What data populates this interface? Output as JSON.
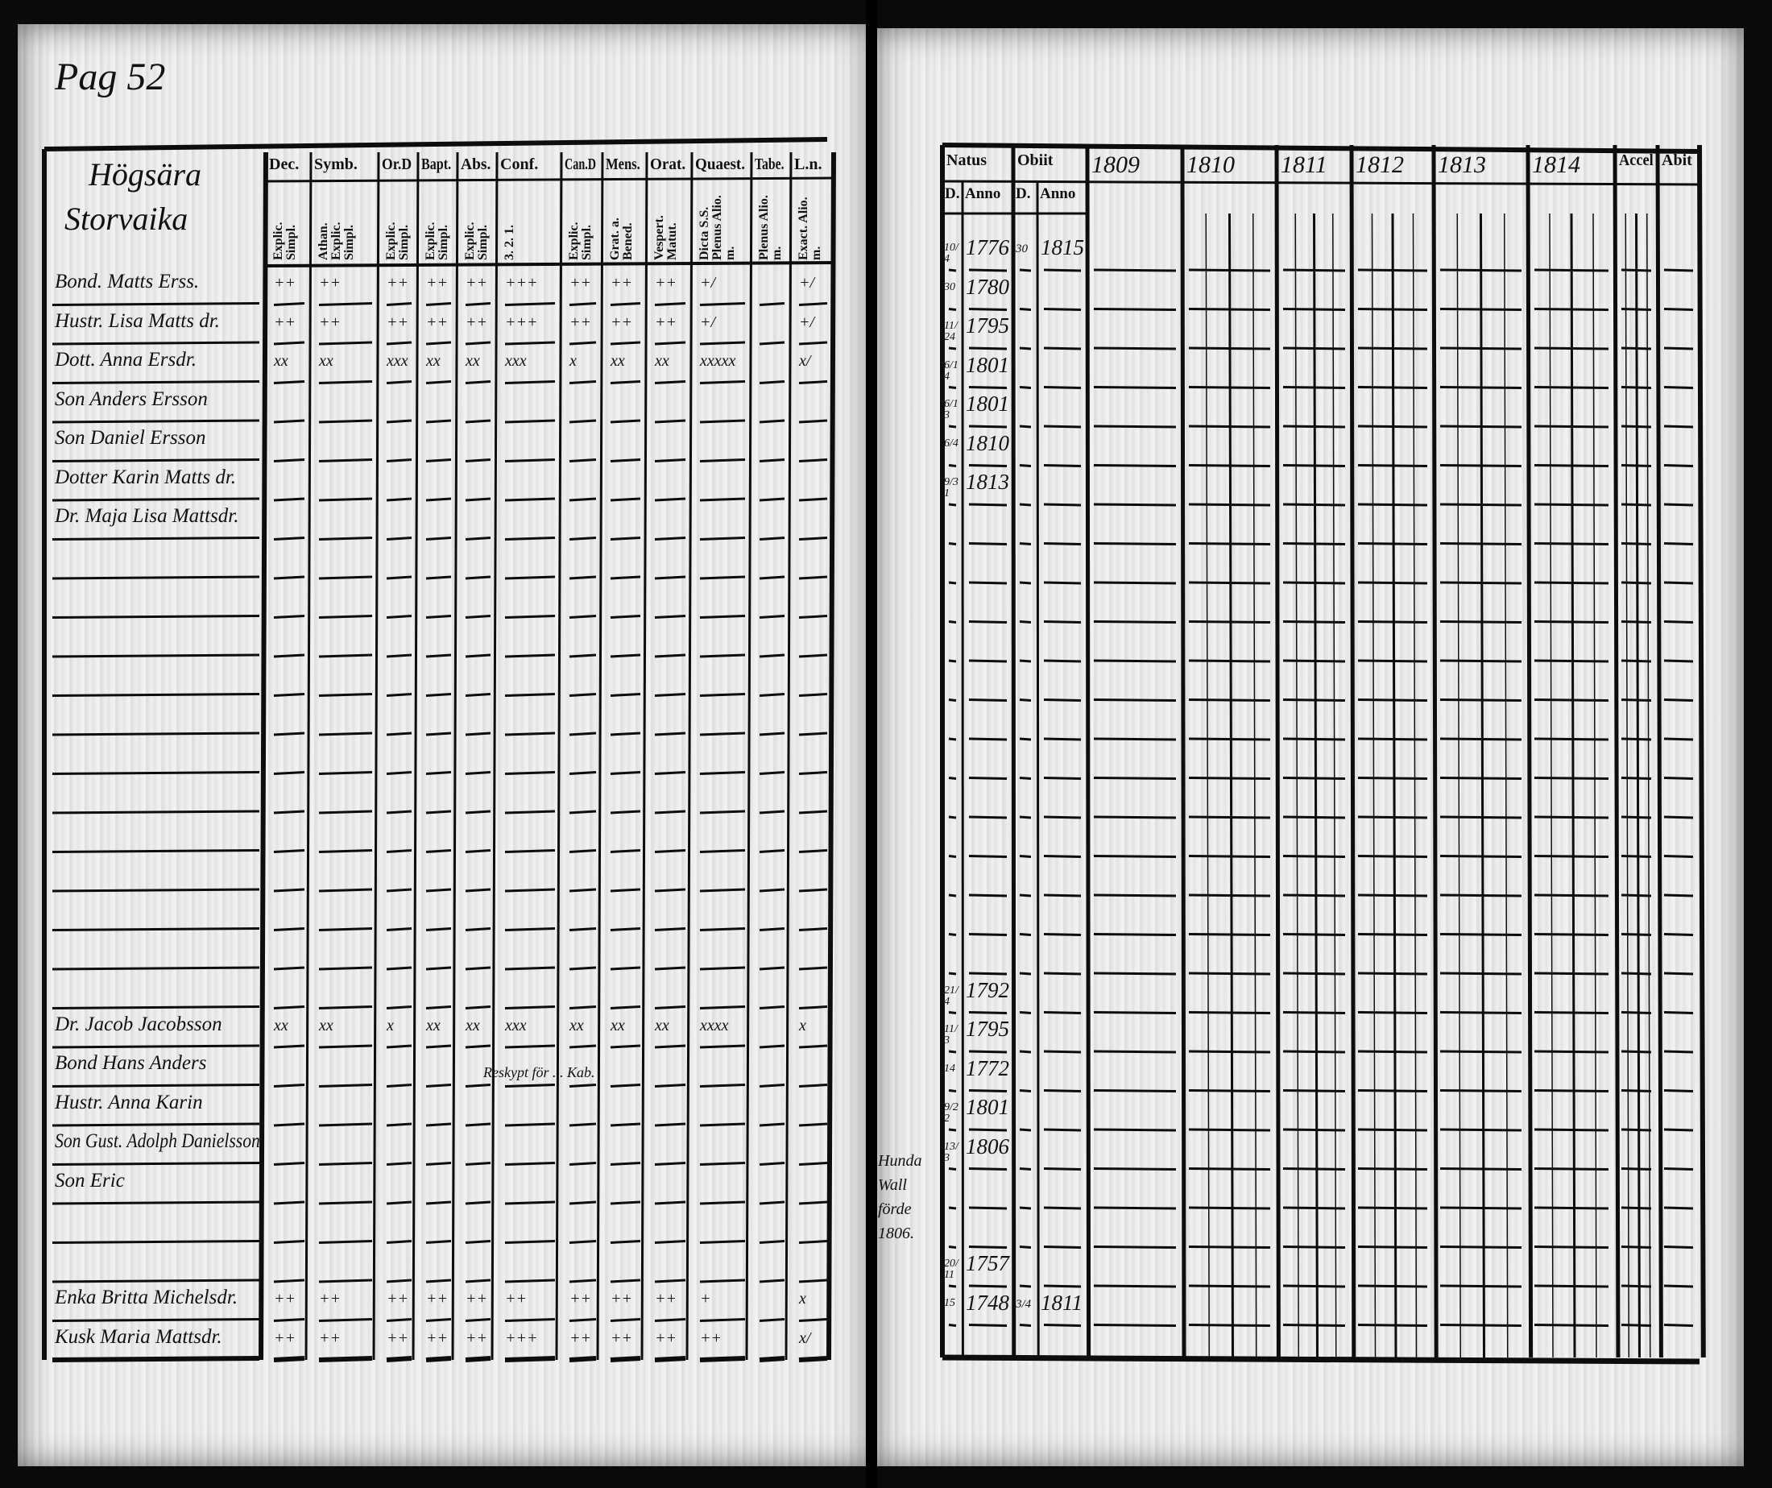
{
  "page_number": "Pag 52",
  "left_page": {
    "place_heading": [
      "Högsära",
      "Storvaika"
    ],
    "column_headers": [
      {
        "label": "Dec.",
        "sub": "Explic. Simpl."
      },
      {
        "label": "Symb.",
        "sub": "Athan. Explic. Simpl."
      },
      {
        "label": "Or.D",
        "sub": "Explic. Simpl."
      },
      {
        "label": "Bapt.",
        "sub": "Explic. Simpl."
      },
      {
        "label": "Abs.",
        "sub": "Explic. Simpl."
      },
      {
        "label": "Conf.",
        "sub": "3. 2. 1."
      },
      {
        "label": "Can.D",
        "sub": "Explic. Simpl."
      },
      {
        "label": "Mens.",
        "sub": "Grat. a. Bened."
      },
      {
        "label": "Orat.",
        "sub": "Vespert. Matut."
      },
      {
        "label": "Quaest.",
        "sub": "Dicta S.S. Plenus Alio. m."
      },
      {
        "label": "Tabe.",
        "sub": "Plenus Alio. m."
      },
      {
        "label": "L.n.",
        "sub": "Exact. Alio. m."
      }
    ],
    "entries": [
      {
        "row": 0,
        "name": "Bond. Matts Erss.",
        "marks": [
          "++",
          "++",
          "++",
          "++",
          "++",
          "+++",
          "++",
          "++",
          "++",
          "+/",
          "",
          "+/"
        ]
      },
      {
        "row": 1,
        "name": "Hustr. Lisa Matts dr.",
        "marks": [
          "++",
          "++",
          "++",
          "++",
          "++",
          "+++",
          "++",
          "++",
          "++",
          "+/",
          "",
          "+/"
        ]
      },
      {
        "row": 2,
        "name": "Dott. Anna Ersdr.",
        "marks": [
          "xx",
          "xx",
          "xxx",
          "xx",
          "xx",
          "xxx",
          "x",
          "xx",
          "xx",
          "xxxxx",
          "",
          "x/"
        ]
      },
      {
        "row": 3,
        "name": "Son Anders Ersson",
        "marks": []
      },
      {
        "row": 4,
        "name": "Son Daniel Ersson",
        "marks": []
      },
      {
        "row": 5,
        "name": "Dotter Karin Matts dr.",
        "marks": []
      },
      {
        "row": 6,
        "name": "Dr. Maja Lisa Mattsdr.",
        "marks": []
      },
      {
        "row": 19,
        "name": "Dr. Jacob Jacobsson",
        "marks": [
          "xx",
          "xx",
          "x",
          "xx",
          "xx",
          "xxx",
          "xx",
          "xx",
          "xx",
          "xxxx",
          "",
          "x"
        ]
      },
      {
        "row": 20,
        "name": "Bond Hans Anders",
        "marks": []
      },
      {
        "row": 21,
        "name": "Hustr. Anna Karin",
        "marks": []
      },
      {
        "row": 22,
        "name": "Son Gust. Adolph Danielsson",
        "marks": []
      },
      {
        "row": 23,
        "name": "Son Eric",
        "marks": []
      },
      {
        "row": 26,
        "name": "Enka Britta Michelsdr.",
        "marks": [
          "++",
          "++",
          "++",
          "++",
          "++",
          "++",
          "++",
          "++",
          "++",
          "+",
          "",
          "x"
        ]
      },
      {
        "row": 27,
        "name": "Kusk Maria Mattsdr.",
        "marks": [
          "++",
          "++",
          "++",
          "++",
          "++",
          "+++",
          "++",
          "++",
          "++",
          "++",
          "",
          "x/"
        ]
      }
    ],
    "annotation": "Reskypt för ... Kab."
  },
  "right_page": {
    "column_headers": [
      "Natus",
      "Obiit",
      "1809",
      "1810",
      "1811",
      "1812",
      "1813",
      "1814",
      "Accel",
      "Abit"
    ],
    "sub_headers": [
      "D.",
      "Anno",
      "D.",
      "Anno"
    ],
    "entries": [
      {
        "row": 0,
        "natus_day": "10/4",
        "natus_year": "1776",
        "obiit_day": "30",
        "obiit_year": "1815"
      },
      {
        "row": 1,
        "natus_day": "30",
        "natus_year": "1780"
      },
      {
        "row": 2,
        "natus_day": "11/24",
        "natus_year": "1795"
      },
      {
        "row": 3,
        "natus_day": "6/14",
        "natus_year": "1801"
      },
      {
        "row": 4,
        "natus_day": "6/13",
        "natus_year": "1801"
      },
      {
        "row": 5,
        "natus_day": "6/4",
        "natus_year": "1810"
      },
      {
        "row": 6,
        "natus_day": "9/31",
        "natus_year": "1813"
      },
      {
        "row": 19,
        "natus_day": "21/4",
        "natus_year": "1792"
      },
      {
        "row": 20,
        "natus_day": "11/3",
        "natus_year": "1795"
      },
      {
        "row": 21,
        "natus_day": "14",
        "natus_year": "1772"
      },
      {
        "row": 22,
        "natus_day": "9/22",
        "natus_year": "1801"
      },
      {
        "row": 23,
        "natus_day": "13/3",
        "natus_year": "1806"
      },
      {
        "row": 26,
        "natus_day": "20/11",
        "natus_year": "1757"
      },
      {
        "row": 27,
        "natus_day": "15",
        "natus_year": "1748",
        "obiit_day": "3/4",
        "obiit_year": "1811"
      }
    ],
    "margin_note": [
      "Hunda",
      "Wall",
      "förde",
      "1806."
    ]
  }
}
